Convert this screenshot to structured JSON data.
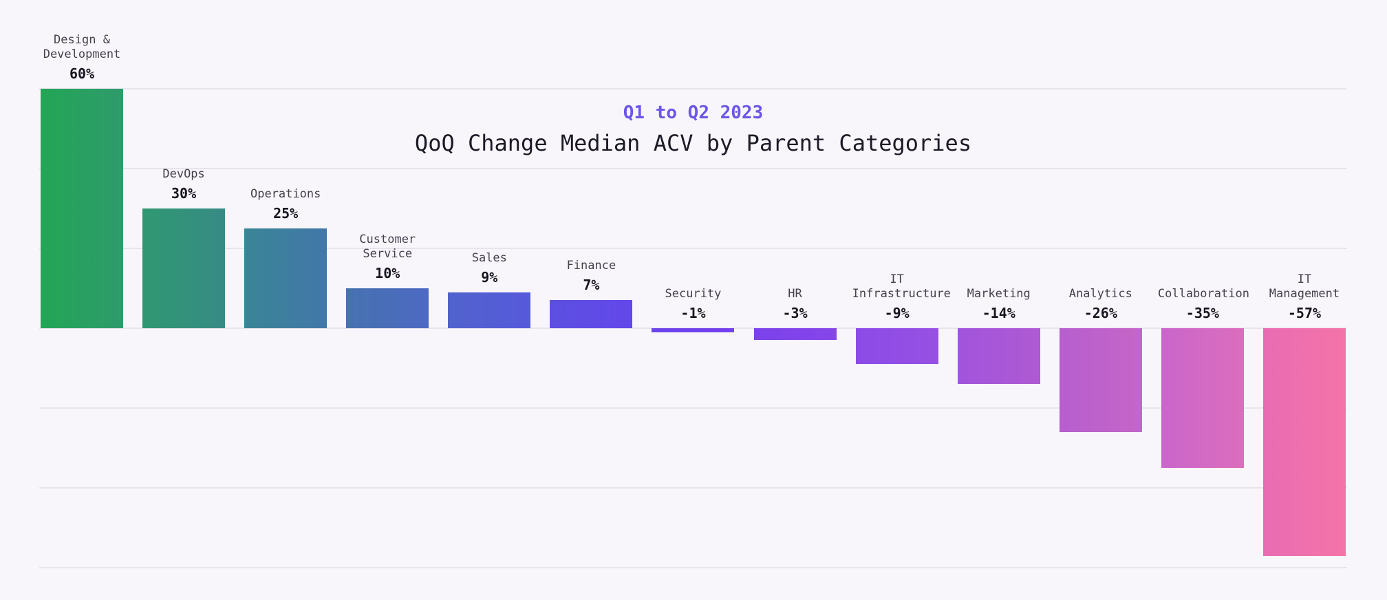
{
  "page": {
    "background_color": "#F8F6FB",
    "gridline_color": "#E7E4ED"
  },
  "header": {
    "subtitle_color": "#6C55E8",
    "title_color": "#1C1A26"
  },
  "chart_data": {
    "type": "bar",
    "subtitle": "Q1 to Q2 2023",
    "title": "QoQ Change Median ACV by Parent Categories",
    "categories": [
      "Design & Development",
      "DevOps",
      "Operations",
      "Customer Service",
      "Sales",
      "Finance",
      "Security",
      "HR",
      "IT Infrastructure",
      "Marketing",
      "Analytics",
      "Collaboration",
      "IT Management"
    ],
    "values": [
      60,
      30,
      25,
      10,
      9,
      7,
      -1,
      -3,
      -9,
      -14,
      -26,
      -35,
      -57
    ],
    "value_labels": [
      "60%",
      "30%",
      "25%",
      "10%",
      "9%",
      "7%",
      "-1%",
      "-3%",
      "-9%",
      "-14%",
      "-26%",
      "-35%",
      "-57%"
    ],
    "ylabel": "",
    "xlabel": "",
    "ylim": [
      -60,
      60
    ],
    "grid_step": 20,
    "grid": true,
    "legend": false,
    "bar_colors": [
      {
        "from": "#22A656",
        "to": "#2F9B6C"
      },
      {
        "from": "#2F9870",
        "to": "#378B86"
      },
      {
        "from": "#3A8596",
        "to": "#4277A9"
      },
      {
        "from": "#4672AF",
        "to": "#4D69C3"
      },
      {
        "from": "#5063CC",
        "to": "#5759DB"
      },
      {
        "from": "#5C50E0",
        "to": "#6347EA"
      },
      {
        "from": "#6C44EC",
        "to": "#7440EC"
      },
      {
        "from": "#7B41EB",
        "to": "#8646E9"
      },
      {
        "from": "#8C4BE7",
        "to": "#9750E2"
      },
      {
        "from": "#A154DC",
        "to": "#AF5AD3"
      },
      {
        "from": "#B75ECF",
        "to": "#C566C7"
      },
      {
        "from": "#C966CB",
        "to": "#DC6DBD"
      },
      {
        "from": "#E96CB3",
        "to": "#F474A7"
      }
    ]
  }
}
